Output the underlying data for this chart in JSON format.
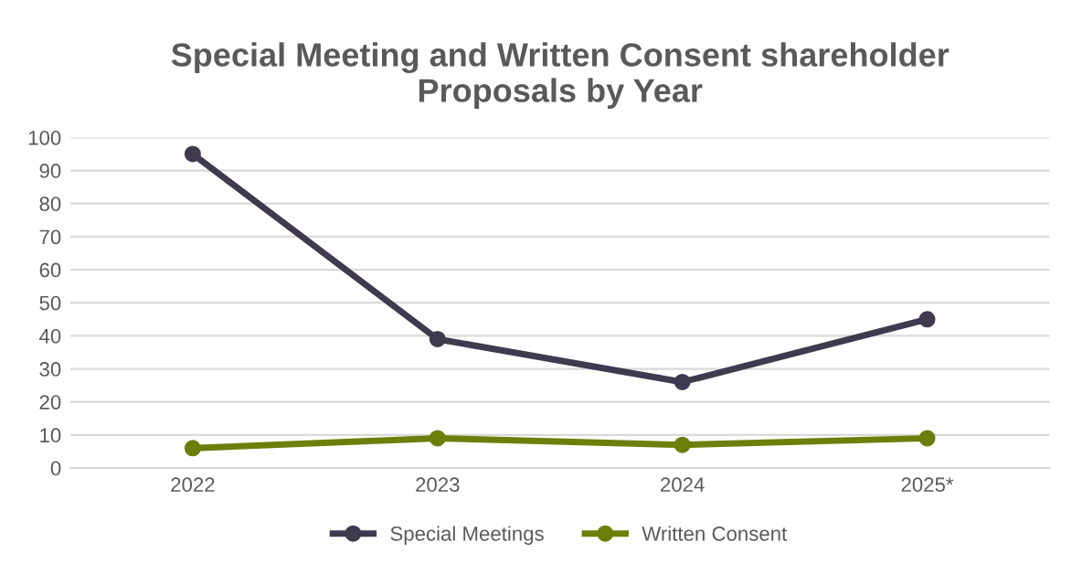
{
  "chart_data": {
    "type": "line",
    "title": "Special Meeting and Written Consent shareholder\nProposals by Year",
    "categories": [
      "2022",
      "2023",
      "2024",
      "2025*"
    ],
    "series": [
      {
        "name": "Special Meetings",
        "color": "#403a4f",
        "values": [
          95,
          39,
          26,
          45
        ]
      },
      {
        "name": "Written Consent",
        "color": "#6b7f0a",
        "values": [
          6,
          9,
          7,
          9
        ]
      }
    ],
    "ylim": [
      0,
      100
    ],
    "yticks": [
      0,
      10,
      20,
      30,
      40,
      50,
      60,
      70,
      80,
      90,
      100
    ],
    "grid": "y",
    "legend": "bottom",
    "marker": "circle",
    "line_style": "solid"
  }
}
